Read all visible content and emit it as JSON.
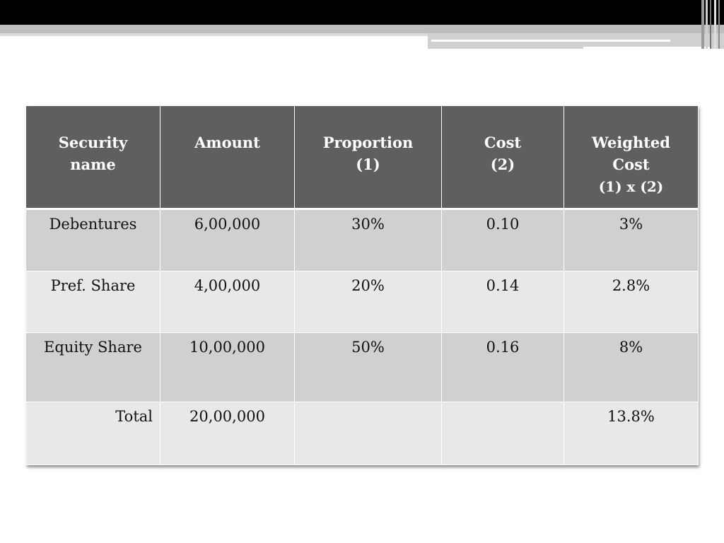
{
  "table": {
    "headers": [
      {
        "line1": "Security",
        "line2": "name",
        "line3": ""
      },
      {
        "line1": "Amount",
        "line2": "",
        "line3": ""
      },
      {
        "line1": "Proportion",
        "line2": "(1)",
        "line3": ""
      },
      {
        "line1": "Cost",
        "line2": "(2)",
        "line3": ""
      },
      {
        "line1": "Weighted",
        "line2": "Cost",
        "line3": "(1) x (2)"
      }
    ],
    "rows": [
      [
        "Debentures",
        "6,00,000",
        "30%",
        "0.10",
        "3%"
      ],
      [
        "Pref. Share",
        "4,00,000",
        "20%",
        "0.14",
        "2.8%"
      ],
      [
        "Equity Share",
        "10,00,000",
        "50%",
        "0.16",
        "8%"
      ],
      [
        "Total",
        "20,00,000",
        "",
        "",
        "13.8%"
      ]
    ]
  }
}
